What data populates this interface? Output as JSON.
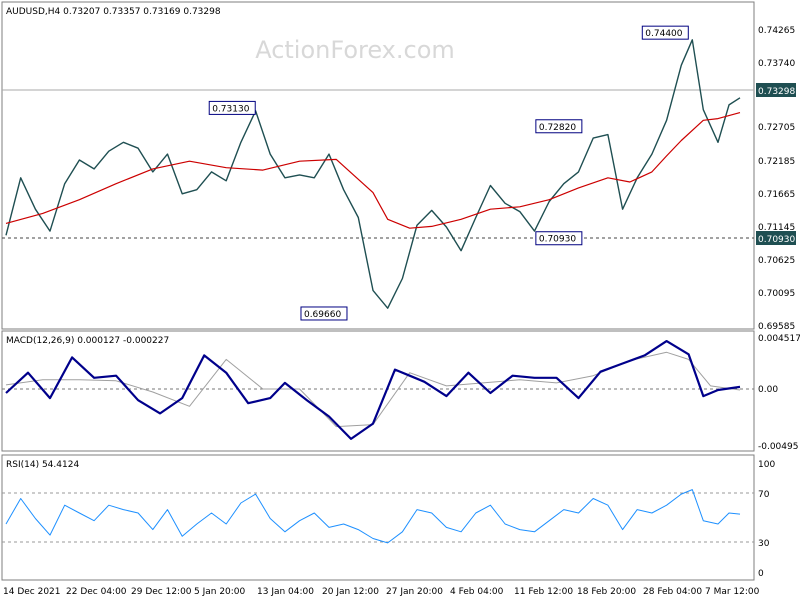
{
  "header": {
    "symbol_line": "AUDUSD,H4  0.73207 0.73357 0.73169 0.73298"
  },
  "watermark": "ActionForex.com",
  "colors": {
    "price": "#1f4f52",
    "ma": "#cc0000",
    "macd": "#00008b",
    "signal": "#a0a0a0",
    "rsi": "#1e90ff",
    "frame": "#7f7f7f"
  },
  "chart_data": [
    {
      "type": "line",
      "panel": "price",
      "title": "AUDUSD,H4",
      "ohlc_last": {
        "open": 0.73207,
        "high": 0.73357,
        "low": 0.73169,
        "close": 0.73298
      },
      "y_ticks": [
        "0.74265",
        "0.73740",
        "0.73298",
        "0.72705",
        "0.72185",
        "0.71665",
        "0.71145",
        "0.70930",
        "0.70625",
        "0.70095",
        "0.69585"
      ],
      "ylim": [
        0.6955,
        0.7458
      ],
      "price_tag": "0.73298",
      "support_tag": "0.70930",
      "annotations": [
        {
          "label": "0.73130",
          "x": 0.345,
          "y": 0.7313
        },
        {
          "label": "0.69660",
          "x": 0.47,
          "y": 0.6966
        },
        {
          "label": "0.72820",
          "x": 0.79,
          "y": 0.7282
        },
        {
          "label": "0.70930",
          "x": 0.79,
          "y": 0.7093
        },
        {
          "label": "0.74400",
          "x": 0.935,
          "y": 0.744
        }
      ],
      "series": [
        {
          "x": [
            0,
            0.02,
            0.04,
            0.06,
            0.08,
            0.1,
            0.12,
            0.14,
            0.16,
            0.18,
            0.2,
            0.22,
            0.24,
            0.26,
            0.28,
            0.3,
            0.32,
            0.34,
            0.36,
            0.38,
            0.4,
            0.42,
            0.44,
            0.46,
            0.48,
            0.5,
            0.52,
            0.54,
            0.56,
            0.58,
            0.6,
            0.62,
            0.64,
            0.66,
            0.68,
            0.7,
            0.72,
            0.74,
            0.76,
            0.78,
            0.8,
            0.82,
            0.84,
            0.86,
            0.88,
            0.9,
            0.92,
            0.935,
            0.95,
            0.97,
            0.985,
            1
          ],
          "values": [
            0.7098,
            0.7195,
            0.7142,
            0.7105,
            0.7185,
            0.7225,
            0.721,
            0.724,
            0.7255,
            0.7245,
            0.7205,
            0.7235,
            0.7168,
            0.7175,
            0.7205,
            0.719,
            0.7255,
            0.7308,
            0.7235,
            0.7195,
            0.72,
            0.7195,
            0.7235,
            0.7175,
            0.7128,
            0.7005,
            0.6975,
            0.7025,
            0.7115,
            0.714,
            0.7112,
            0.7072,
            0.7128,
            0.7182,
            0.7152,
            0.7138,
            0.7105,
            0.7155,
            0.7185,
            0.7205,
            0.7262,
            0.7268,
            0.7142,
            0.7195,
            0.7235,
            0.7292,
            0.7385,
            0.7428,
            0.731,
            0.7255,
            0.7318,
            0.733
          ]
        },
        {
          "x": [
            0,
            0.05,
            0.1,
            0.15,
            0.2,
            0.25,
            0.3,
            0.35,
            0.4,
            0.45,
            0.5,
            0.52,
            0.55,
            0.58,
            0.62,
            0.66,
            0.7,
            0.74,
            0.78,
            0.82,
            0.85,
            0.88,
            0.9,
            0.92,
            0.95,
            0.97,
            1
          ],
          "values": [
            0.7118,
            0.7135,
            0.7158,
            0.7185,
            0.721,
            0.7223,
            0.7212,
            0.7208,
            0.7223,
            0.7226,
            0.717,
            0.7125,
            0.711,
            0.7113,
            0.7125,
            0.7142,
            0.7146,
            0.7158,
            0.7178,
            0.7195,
            0.7188,
            0.7205,
            0.7232,
            0.7258,
            0.7292,
            0.7295,
            0.7305
          ]
        }
      ]
    },
    {
      "type": "line",
      "panel": "macd",
      "title": "MACD(12,26,9) 0.000127 -0.000227",
      "y_ticks": [
        "0.004517",
        "0.00",
        "-0.00495"
      ],
      "ylim": [
        -0.0058,
        0.0052
      ],
      "series": [
        {
          "x": [
            0,
            0.03,
            0.06,
            0.09,
            0.12,
            0.15,
            0.18,
            0.21,
            0.24,
            0.27,
            0.3,
            0.33,
            0.36,
            0.38,
            0.41,
            0.44,
            0.47,
            0.5,
            0.53,
            0.55,
            0.57,
            0.6,
            0.63,
            0.66,
            0.69,
            0.72,
            0.75,
            0.78,
            0.81,
            0.84,
            0.87,
            0.9,
            0.93,
            0.95,
            0.97,
            1
          ],
          "values": [
            -0.0005,
            0.0015,
            -0.001,
            0.003,
            0.001,
            0.0012,
            -0.0012,
            -0.0025,
            -0.001,
            0.0032,
            0.0015,
            -0.0015,
            -0.001,
            0.0005,
            -0.0012,
            -0.0028,
            -0.005,
            -0.0035,
            0.0018,
            0.0012,
            0.0006,
            -0.0008,
            0.0015,
            -0.0005,
            0.0012,
            0.001,
            0.001,
            -0.001,
            0.0016,
            0.0024,
            0.0032,
            0.0046,
            0.0033,
            -0.0008,
            -0.0002,
            0.0001
          ]
        },
        {
          "x": [
            0,
            0.05,
            0.1,
            0.15,
            0.2,
            0.25,
            0.3,
            0.35,
            0.4,
            0.45,
            0.5,
            0.55,
            0.6,
            0.65,
            0.7,
            0.75,
            0.8,
            0.85,
            0.9,
            0.93,
            0.96,
            1
          ],
          "values": [
            0.0003,
            0.0008,
            0.0008,
            0.0007,
            -0.0004,
            -0.0018,
            0.0028,
            -0.0001,
            -0.0001,
            -0.0038,
            -0.0036,
            0.0015,
            0.0002,
            0.0005,
            0.0008,
            0.0005,
            0.0012,
            0.0027,
            0.0035,
            0.0028,
            0.0002,
            -0.0002
          ]
        }
      ]
    },
    {
      "type": "line",
      "panel": "rsi",
      "title": "RSI(14) 54.4124",
      "y_ticks": [
        "100",
        "70",
        "30",
        "0"
      ],
      "ylim": [
        0,
        100
      ],
      "levels": [
        70,
        30
      ],
      "series": [
        {
          "x": [
            0,
            0.02,
            0.04,
            0.06,
            0.08,
            0.1,
            0.12,
            0.14,
            0.16,
            0.18,
            0.2,
            0.22,
            0.24,
            0.26,
            0.28,
            0.3,
            0.32,
            0.34,
            0.36,
            0.38,
            0.4,
            0.42,
            0.44,
            0.46,
            0.48,
            0.5,
            0.52,
            0.54,
            0.56,
            0.58,
            0.6,
            0.62,
            0.64,
            0.66,
            0.68,
            0.7,
            0.72,
            0.74,
            0.76,
            0.78,
            0.8,
            0.82,
            0.84,
            0.86,
            0.88,
            0.9,
            0.92,
            0.935,
            0.95,
            0.97,
            0.985,
            1
          ],
          "values": [
            45,
            68,
            50,
            35,
            62,
            55,
            48,
            62,
            58,
            55,
            40,
            58,
            34,
            45,
            55,
            45,
            64,
            72,
            50,
            38,
            48,
            55,
            42,
            45,
            40,
            32,
            28,
            38,
            58,
            55,
            42,
            38,
            55,
            62,
            45,
            40,
            38,
            48,
            58,
            55,
            68,
            62,
            40,
            58,
            55,
            62,
            72,
            76,
            48,
            45,
            55,
            54
          ]
        }
      ]
    }
  ],
  "x_axis": {
    "tick_labels": [
      "14 Dec 2021",
      "22 Dec 04:00",
      "29 Dec 12:00",
      "5 Jan 20:00",
      "13 Jan 04:00",
      "20 Jan 12:00",
      "27 Jan 20:00",
      "4 Feb 04:00",
      "11 Feb 12:00",
      "18 Feb 20:00",
      "28 Feb 04:00",
      "7 Mar 12:00"
    ]
  }
}
